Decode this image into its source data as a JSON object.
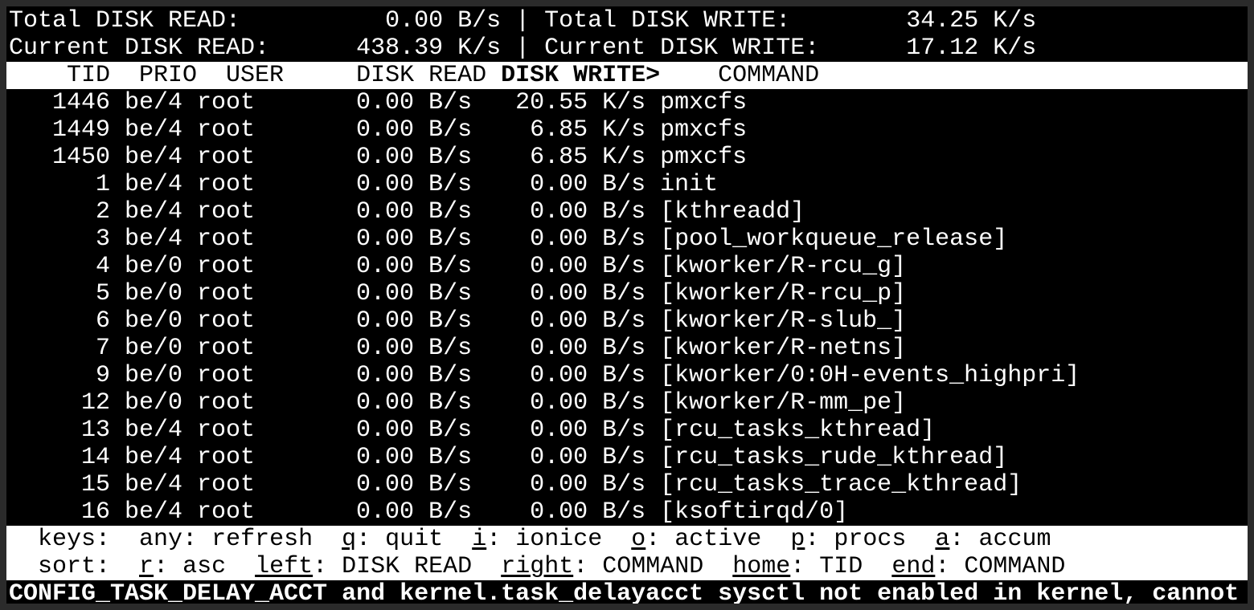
{
  "summary": {
    "total_read_label": "Total DISK READ:",
    "total_read": "0.00 B/s",
    "total_write_label": "Total DISK WRITE:",
    "total_write": "34.25 K/s",
    "current_read_label": "Current DISK READ:",
    "current_read": "438.39 K/s",
    "current_write_label": "Current DISK WRITE:",
    "current_write": "17.12 K/s",
    "separator": "|"
  },
  "header": {
    "tid": "TID",
    "prio": "PRIO",
    "user": "USER",
    "disk_read": "DISK READ",
    "disk_write": "DISK WRITE>",
    "command": "COMMAND"
  },
  "rows": [
    {
      "tid": "1446",
      "prio": "be/4",
      "user": "root",
      "read": "0.00 B/s",
      "write": "20.55 K/s",
      "command": "pmxcfs"
    },
    {
      "tid": "1449",
      "prio": "be/4",
      "user": "root",
      "read": "0.00 B/s",
      "write": "6.85 K/s",
      "command": "pmxcfs"
    },
    {
      "tid": "1450",
      "prio": "be/4",
      "user": "root",
      "read": "0.00 B/s",
      "write": "6.85 K/s",
      "command": "pmxcfs"
    },
    {
      "tid": "1",
      "prio": "be/4",
      "user": "root",
      "read": "0.00 B/s",
      "write": "0.00 B/s",
      "command": "init"
    },
    {
      "tid": "2",
      "prio": "be/4",
      "user": "root",
      "read": "0.00 B/s",
      "write": "0.00 B/s",
      "command": "[kthreadd]"
    },
    {
      "tid": "3",
      "prio": "be/4",
      "user": "root",
      "read": "0.00 B/s",
      "write": "0.00 B/s",
      "command": "[pool_workqueue_release]"
    },
    {
      "tid": "4",
      "prio": "be/0",
      "user": "root",
      "read": "0.00 B/s",
      "write": "0.00 B/s",
      "command": "[kworker/R-rcu_g]"
    },
    {
      "tid": "5",
      "prio": "be/0",
      "user": "root",
      "read": "0.00 B/s",
      "write": "0.00 B/s",
      "command": "[kworker/R-rcu_p]"
    },
    {
      "tid": "6",
      "prio": "be/0",
      "user": "root",
      "read": "0.00 B/s",
      "write": "0.00 B/s",
      "command": "[kworker/R-slub_]"
    },
    {
      "tid": "7",
      "prio": "be/0",
      "user": "root",
      "read": "0.00 B/s",
      "write": "0.00 B/s",
      "command": "[kworker/R-netns]"
    },
    {
      "tid": "9",
      "prio": "be/0",
      "user": "root",
      "read": "0.00 B/s",
      "write": "0.00 B/s",
      "command": "[kworker/0:0H-events_highpri]"
    },
    {
      "tid": "12",
      "prio": "be/0",
      "user": "root",
      "read": "0.00 B/s",
      "write": "0.00 B/s",
      "command": "[kworker/R-mm_pe]"
    },
    {
      "tid": "13",
      "prio": "be/4",
      "user": "root",
      "read": "0.00 B/s",
      "write": "0.00 B/s",
      "command": "[rcu_tasks_kthread]"
    },
    {
      "tid": "14",
      "prio": "be/4",
      "user": "root",
      "read": "0.00 B/s",
      "write": "0.00 B/s",
      "command": "[rcu_tasks_rude_kthread]"
    },
    {
      "tid": "15",
      "prio": "be/4",
      "user": "root",
      "read": "0.00 B/s",
      "write": "0.00 B/s",
      "command": "[rcu_tasks_trace_kthread]"
    },
    {
      "tid": "16",
      "prio": "be/4",
      "user": "root",
      "read": "0.00 B/s",
      "write": "0.00 B/s",
      "command": "[ksoftirqd/0]"
    }
  ],
  "keys": {
    "label": "keys:",
    "items": [
      {
        "key": "any",
        "desc": "refresh",
        "underline": false
      },
      {
        "key": "q",
        "desc": "quit",
        "underline": true
      },
      {
        "key": "i",
        "desc": "ionice",
        "underline": true
      },
      {
        "key": "o",
        "desc": "active",
        "underline": true
      },
      {
        "key": "p",
        "desc": "procs",
        "underline": true
      },
      {
        "key": "a",
        "desc": "accum",
        "underline": true
      }
    ]
  },
  "sort": {
    "label": "sort:",
    "items": [
      {
        "key": "r",
        "desc": "asc"
      },
      {
        "key": "left",
        "desc": "DISK READ"
      },
      {
        "key": "right",
        "desc": "COMMAND"
      },
      {
        "key": "home",
        "desc": "TID"
      },
      {
        "key": "end",
        "desc": "COMMAND"
      }
    ]
  },
  "warning": "CONFIG_TASK_DELAY_ACCT and kernel.task_delayacct sysctl not enabled in kernel, cannot",
  "colors": {
    "background": "#000000",
    "foreground": "#ffffff",
    "frame": "#2b2b2b"
  }
}
